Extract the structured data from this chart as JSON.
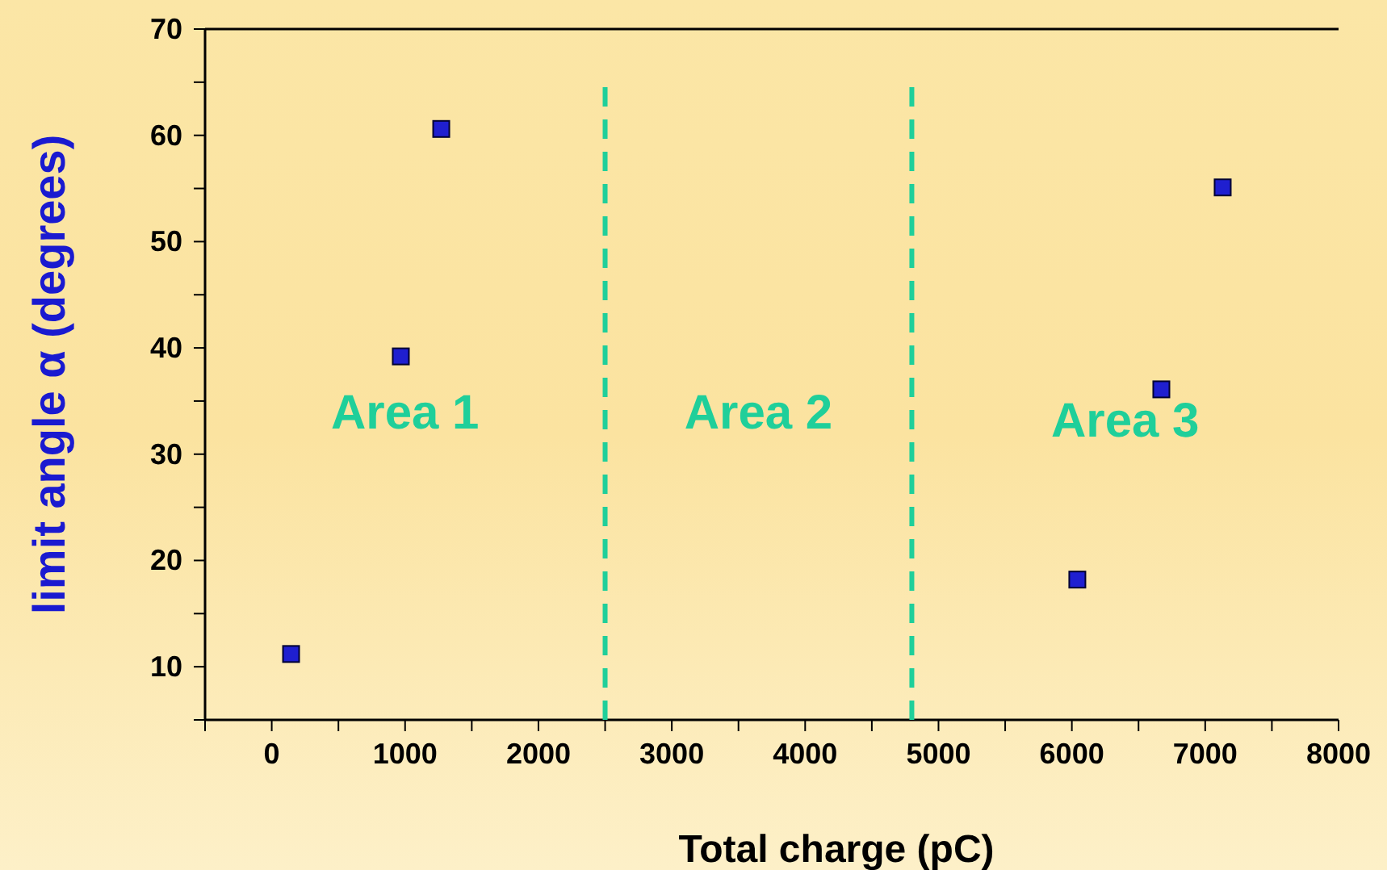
{
  "chart_data": {
    "type": "scatter",
    "xlabel": "Total charge (pC)",
    "ylabel": "limit angle α (degrees)",
    "x": [
      145,
      968,
      1271,
      6041,
      6671,
      7131
    ],
    "series": [
      {
        "color": "#1f1fd0",
        "values": [
          11.2,
          39.2,
          60.6,
          18.2,
          36.1,
          55.1
        ]
      }
    ],
    "marker": "square",
    "grid": false,
    "xlim": [
      -500,
      8000
    ],
    "xticks": [
      0,
      1000,
      2000,
      3000,
      4000,
      5000,
      6000,
      7000,
      8000
    ],
    "ylim": [
      5,
      70
    ],
    "yticks": [
      10,
      20,
      30,
      40,
      50,
      60,
      70
    ],
    "ref_lines": [
      {
        "axis": "x",
        "value": 2500,
        "color": "#1fcf9a",
        "line_style": "dashed"
      },
      {
        "axis": "x",
        "value": 4800,
        "color": "#1fcf9a",
        "line_style": "dashed"
      }
    ],
    "annotations": [
      "Area 1",
      "Area 2",
      "Area 3"
    ]
  }
}
